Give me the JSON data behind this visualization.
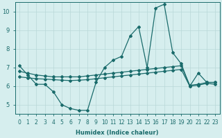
{
  "xlabel": "Humidex (Indice chaleur)",
  "background_color": "#d6eeee",
  "line_color": "#1a6b6b",
  "grid_color": "#b8d8d8",
  "xlim": [
    -0.5,
    23.5
  ],
  "ylim": [
    4.5,
    10.5
  ],
  "yticks": [
    5,
    6,
    7,
    8,
    9,
    10
  ],
  "xticks": [
    0,
    1,
    2,
    3,
    4,
    5,
    6,
    7,
    8,
    9,
    10,
    11,
    12,
    13,
    14,
    15,
    16,
    17,
    18,
    19,
    20,
    21,
    22,
    23
  ],
  "series1_y": [
    7.1,
    6.6,
    6.1,
    6.1,
    5.7,
    5.0,
    4.8,
    4.7,
    4.7,
    6.2,
    7.0,
    7.4,
    7.6,
    8.7,
    9.2,
    7.0,
    10.2,
    10.4,
    7.8,
    7.2,
    6.0,
    6.7,
    6.2,
    6.2
  ],
  "series2_y": [
    6.8,
    6.7,
    6.6,
    6.55,
    6.5,
    6.5,
    6.5,
    6.5,
    6.55,
    6.6,
    6.65,
    6.7,
    6.75,
    6.8,
    6.85,
    6.9,
    6.95,
    7.0,
    7.05,
    7.1,
    6.05,
    6.1,
    6.2,
    6.2
  ],
  "series3_y": [
    6.5,
    6.45,
    6.4,
    6.38,
    6.35,
    6.32,
    6.3,
    6.32,
    6.35,
    6.4,
    6.45,
    6.5,
    6.55,
    6.6,
    6.65,
    6.7,
    6.75,
    6.8,
    6.85,
    6.9,
    6.0,
    6.05,
    6.15,
    6.1
  ],
  "xlabel_fontsize": 6,
  "tick_fontsize": 5.5,
  "linewidth": 0.9,
  "markersize": 2.0
}
